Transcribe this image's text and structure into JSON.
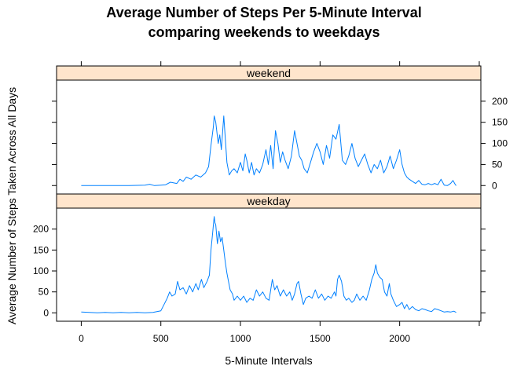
{
  "chart_data": {
    "type": "line",
    "title": "Average Number of Steps Per 5-Minute Interval",
    "subtitle": "comparing weekends to weekdays",
    "xlabel": "5-Minute Intervals",
    "ylabel": "Average Number of Steps Taken Across All Days",
    "xlim": [
      -155,
      2510
    ],
    "ylim": [
      -20,
      250
    ],
    "x_ticks": [
      0,
      500,
      1000,
      1500,
      2000
    ],
    "y_ticks": [
      0,
      50,
      100,
      150,
      200
    ],
    "line_color": "#0080ff",
    "strip_color": "#ffe5cc",
    "grid": false,
    "panels": [
      {
        "name": "weekend",
        "points": [
          [
            0,
            0
          ],
          [
            100,
            0
          ],
          [
            200,
            0
          ],
          [
            300,
            0
          ],
          [
            400,
            1
          ],
          [
            430,
            3
          ],
          [
            460,
            0
          ],
          [
            500,
            1
          ],
          [
            530,
            2
          ],
          [
            560,
            8
          ],
          [
            600,
            5
          ],
          [
            620,
            15
          ],
          [
            640,
            10
          ],
          [
            660,
            20
          ],
          [
            690,
            15
          ],
          [
            720,
            25
          ],
          [
            750,
            20
          ],
          [
            780,
            30
          ],
          [
            800,
            45
          ],
          [
            815,
            95
          ],
          [
            830,
            140
          ],
          [
            835,
            165
          ],
          [
            845,
            150
          ],
          [
            860,
            100
          ],
          [
            870,
            120
          ],
          [
            880,
            85
          ],
          [
            895,
            165
          ],
          [
            905,
            110
          ],
          [
            915,
            55
          ],
          [
            930,
            25
          ],
          [
            945,
            35
          ],
          [
            960,
            40
          ],
          [
            980,
            30
          ],
          [
            1000,
            55
          ],
          [
            1015,
            35
          ],
          [
            1030,
            75
          ],
          [
            1040,
            60
          ],
          [
            1055,
            30
          ],
          [
            1070,
            55
          ],
          [
            1085,
            25
          ],
          [
            1100,
            40
          ],
          [
            1120,
            30
          ],
          [
            1140,
            50
          ],
          [
            1160,
            85
          ],
          [
            1175,
            50
          ],
          [
            1190,
            95
          ],
          [
            1205,
            40
          ],
          [
            1220,
            130
          ],
          [
            1235,
            100
          ],
          [
            1250,
            55
          ],
          [
            1265,
            80
          ],
          [
            1280,
            60
          ],
          [
            1300,
            40
          ],
          [
            1320,
            70
          ],
          [
            1340,
            130
          ],
          [
            1355,
            100
          ],
          [
            1370,
            70
          ],
          [
            1385,
            60
          ],
          [
            1400,
            40
          ],
          [
            1420,
            30
          ],
          [
            1440,
            55
          ],
          [
            1460,
            80
          ],
          [
            1480,
            100
          ],
          [
            1500,
            80
          ],
          [
            1520,
            50
          ],
          [
            1540,
            95
          ],
          [
            1560,
            65
          ],
          [
            1580,
            120
          ],
          [
            1600,
            110
          ],
          [
            1620,
            145
          ],
          [
            1640,
            60
          ],
          [
            1660,
            50
          ],
          [
            1680,
            70
          ],
          [
            1700,
            100
          ],
          [
            1720,
            65
          ],
          [
            1740,
            45
          ],
          [
            1760,
            60
          ],
          [
            1780,
            75
          ],
          [
            1800,
            50
          ],
          [
            1820,
            30
          ],
          [
            1840,
            50
          ],
          [
            1860,
            40
          ],
          [
            1880,
            60
          ],
          [
            1900,
            30
          ],
          [
            1920,
            45
          ],
          [
            1940,
            70
          ],
          [
            1960,
            40
          ],
          [
            1980,
            60
          ],
          [
            2000,
            85
          ],
          [
            2015,
            50
          ],
          [
            2030,
            30
          ],
          [
            2045,
            20
          ],
          [
            2060,
            15
          ],
          [
            2080,
            10
          ],
          [
            2100,
            5
          ],
          [
            2120,
            12
          ],
          [
            2140,
            3
          ],
          [
            2160,
            2
          ],
          [
            2180,
            5
          ],
          [
            2200,
            2
          ],
          [
            2220,
            5
          ],
          [
            2240,
            2
          ],
          [
            2260,
            15
          ],
          [
            2280,
            1
          ],
          [
            2300,
            0
          ],
          [
            2320,
            5
          ],
          [
            2335,
            12
          ],
          [
            2350,
            2
          ],
          [
            2355,
            0
          ]
        ]
      },
      {
        "name": "weekday",
        "points": [
          [
            0,
            2
          ],
          [
            50,
            1
          ],
          [
            100,
            0
          ],
          [
            150,
            1
          ],
          [
            200,
            0
          ],
          [
            250,
            1
          ],
          [
            300,
            0
          ],
          [
            350,
            1
          ],
          [
            400,
            0
          ],
          [
            450,
            1
          ],
          [
            500,
            5
          ],
          [
            520,
            20
          ],
          [
            540,
            35
          ],
          [
            555,
            50
          ],
          [
            570,
            40
          ],
          [
            590,
            45
          ],
          [
            605,
            75
          ],
          [
            620,
            55
          ],
          [
            640,
            60
          ],
          [
            660,
            45
          ],
          [
            680,
            65
          ],
          [
            700,
            50
          ],
          [
            720,
            70
          ],
          [
            735,
            55
          ],
          [
            755,
            80
          ],
          [
            770,
            60
          ],
          [
            790,
            75
          ],
          [
            805,
            90
          ],
          [
            815,
            150
          ],
          [
            825,
            190
          ],
          [
            835,
            230
          ],
          [
            840,
            215
          ],
          [
            845,
            210
          ],
          [
            855,
            165
          ],
          [
            865,
            195
          ],
          [
            875,
            170
          ],
          [
            885,
            180
          ],
          [
            895,
            150
          ],
          [
            905,
            120
          ],
          [
            915,
            95
          ],
          [
            925,
            75
          ],
          [
            935,
            55
          ],
          [
            950,
            45
          ],
          [
            960,
            30
          ],
          [
            980,
            40
          ],
          [
            1000,
            30
          ],
          [
            1020,
            40
          ],
          [
            1040,
            25
          ],
          [
            1060,
            35
          ],
          [
            1080,
            30
          ],
          [
            1100,
            55
          ],
          [
            1120,
            40
          ],
          [
            1140,
            50
          ],
          [
            1160,
            35
          ],
          [
            1180,
            30
          ],
          [
            1200,
            80
          ],
          [
            1215,
            55
          ],
          [
            1230,
            65
          ],
          [
            1250,
            40
          ],
          [
            1270,
            55
          ],
          [
            1290,
            40
          ],
          [
            1310,
            50
          ],
          [
            1325,
            30
          ],
          [
            1340,
            45
          ],
          [
            1355,
            70
          ],
          [
            1365,
            75
          ],
          [
            1380,
            45
          ],
          [
            1395,
            20
          ],
          [
            1410,
            35
          ],
          [
            1430,
            40
          ],
          [
            1450,
            35
          ],
          [
            1470,
            55
          ],
          [
            1490,
            35
          ],
          [
            1510,
            45
          ],
          [
            1530,
            30
          ],
          [
            1550,
            40
          ],
          [
            1570,
            35
          ],
          [
            1590,
            50
          ],
          [
            1600,
            40
          ],
          [
            1610,
            80
          ],
          [
            1620,
            90
          ],
          [
            1635,
            75
          ],
          [
            1650,
            40
          ],
          [
            1665,
            30
          ],
          [
            1680,
            35
          ],
          [
            1700,
            25
          ],
          [
            1715,
            30
          ],
          [
            1730,
            45
          ],
          [
            1750,
            30
          ],
          [
            1770,
            40
          ],
          [
            1790,
            30
          ],
          [
            1810,
            55
          ],
          [
            1825,
            80
          ],
          [
            1840,
            95
          ],
          [
            1850,
            115
          ],
          [
            1860,
            95
          ],
          [
            1875,
            85
          ],
          [
            1890,
            80
          ],
          [
            1905,
            50
          ],
          [
            1920,
            40
          ],
          [
            1935,
            70
          ],
          [
            1945,
            45
          ],
          [
            1960,
            30
          ],
          [
            1980,
            15
          ],
          [
            2000,
            20
          ],
          [
            2015,
            25
          ],
          [
            2030,
            10
          ],
          [
            2045,
            20
          ],
          [
            2060,
            8
          ],
          [
            2080,
            15
          ],
          [
            2100,
            8
          ],
          [
            2120,
            5
          ],
          [
            2140,
            10
          ],
          [
            2160,
            8
          ],
          [
            2180,
            5
          ],
          [
            2200,
            3
          ],
          [
            2220,
            10
          ],
          [
            2240,
            8
          ],
          [
            2260,
            5
          ],
          [
            2280,
            2
          ],
          [
            2300,
            3
          ],
          [
            2320,
            2
          ],
          [
            2340,
            4
          ],
          [
            2355,
            1
          ]
        ]
      }
    ]
  }
}
